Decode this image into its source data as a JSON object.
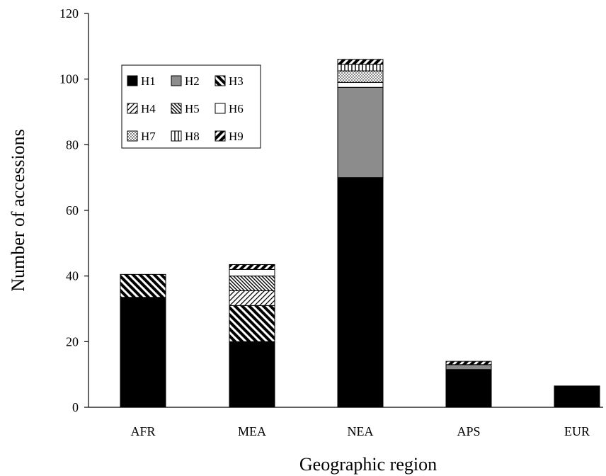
{
  "chart_data": {
    "type": "bar",
    "stacked": true,
    "title": "",
    "xlabel": "Geographic region",
    "ylabel": "Number of accessions",
    "ylim": [
      0,
      120
    ],
    "yticks": [
      0,
      20,
      40,
      60,
      80,
      100,
      120
    ],
    "categories": [
      "AFR",
      "MEA",
      "NEA",
      "APS",
      "EUR"
    ],
    "series": [
      {
        "name": "H1",
        "values": [
          33.5,
          20,
          70,
          11.5,
          6.5
        ],
        "pattern": "solid-black"
      },
      {
        "name": "H2",
        "values": [
          0,
          0,
          27.5,
          1.5,
          0
        ],
        "pattern": "solid-gray"
      },
      {
        "name": "H3",
        "values": [
          7,
          11,
          0,
          0,
          0
        ],
        "pattern": "back-diagonal-wide"
      },
      {
        "name": "H4",
        "values": [
          0,
          4.5,
          0,
          0,
          0
        ],
        "pattern": "forward-diagonal-thin"
      },
      {
        "name": "H5",
        "values": [
          0,
          4.5,
          0,
          0,
          0
        ],
        "pattern": "back-diagonal-thin"
      },
      {
        "name": "H6",
        "values": [
          0,
          2,
          1.5,
          0,
          0
        ],
        "pattern": "white"
      },
      {
        "name": "H7",
        "values": [
          0,
          0,
          3.5,
          0,
          0
        ],
        "pattern": "dots"
      },
      {
        "name": "H8",
        "values": [
          0,
          0,
          2,
          0,
          0
        ],
        "pattern": "vertical-lines"
      },
      {
        "name": "H9",
        "values": [
          0,
          1.5,
          1.5,
          1,
          0
        ],
        "pattern": "forward-diagonal-wide"
      }
    ],
    "legend_position": "top-left",
    "grid": false,
    "colors": {
      "solid_black": "#000000",
      "solid_gray": "#8c8c8c",
      "white": "#ffffff"
    }
  }
}
